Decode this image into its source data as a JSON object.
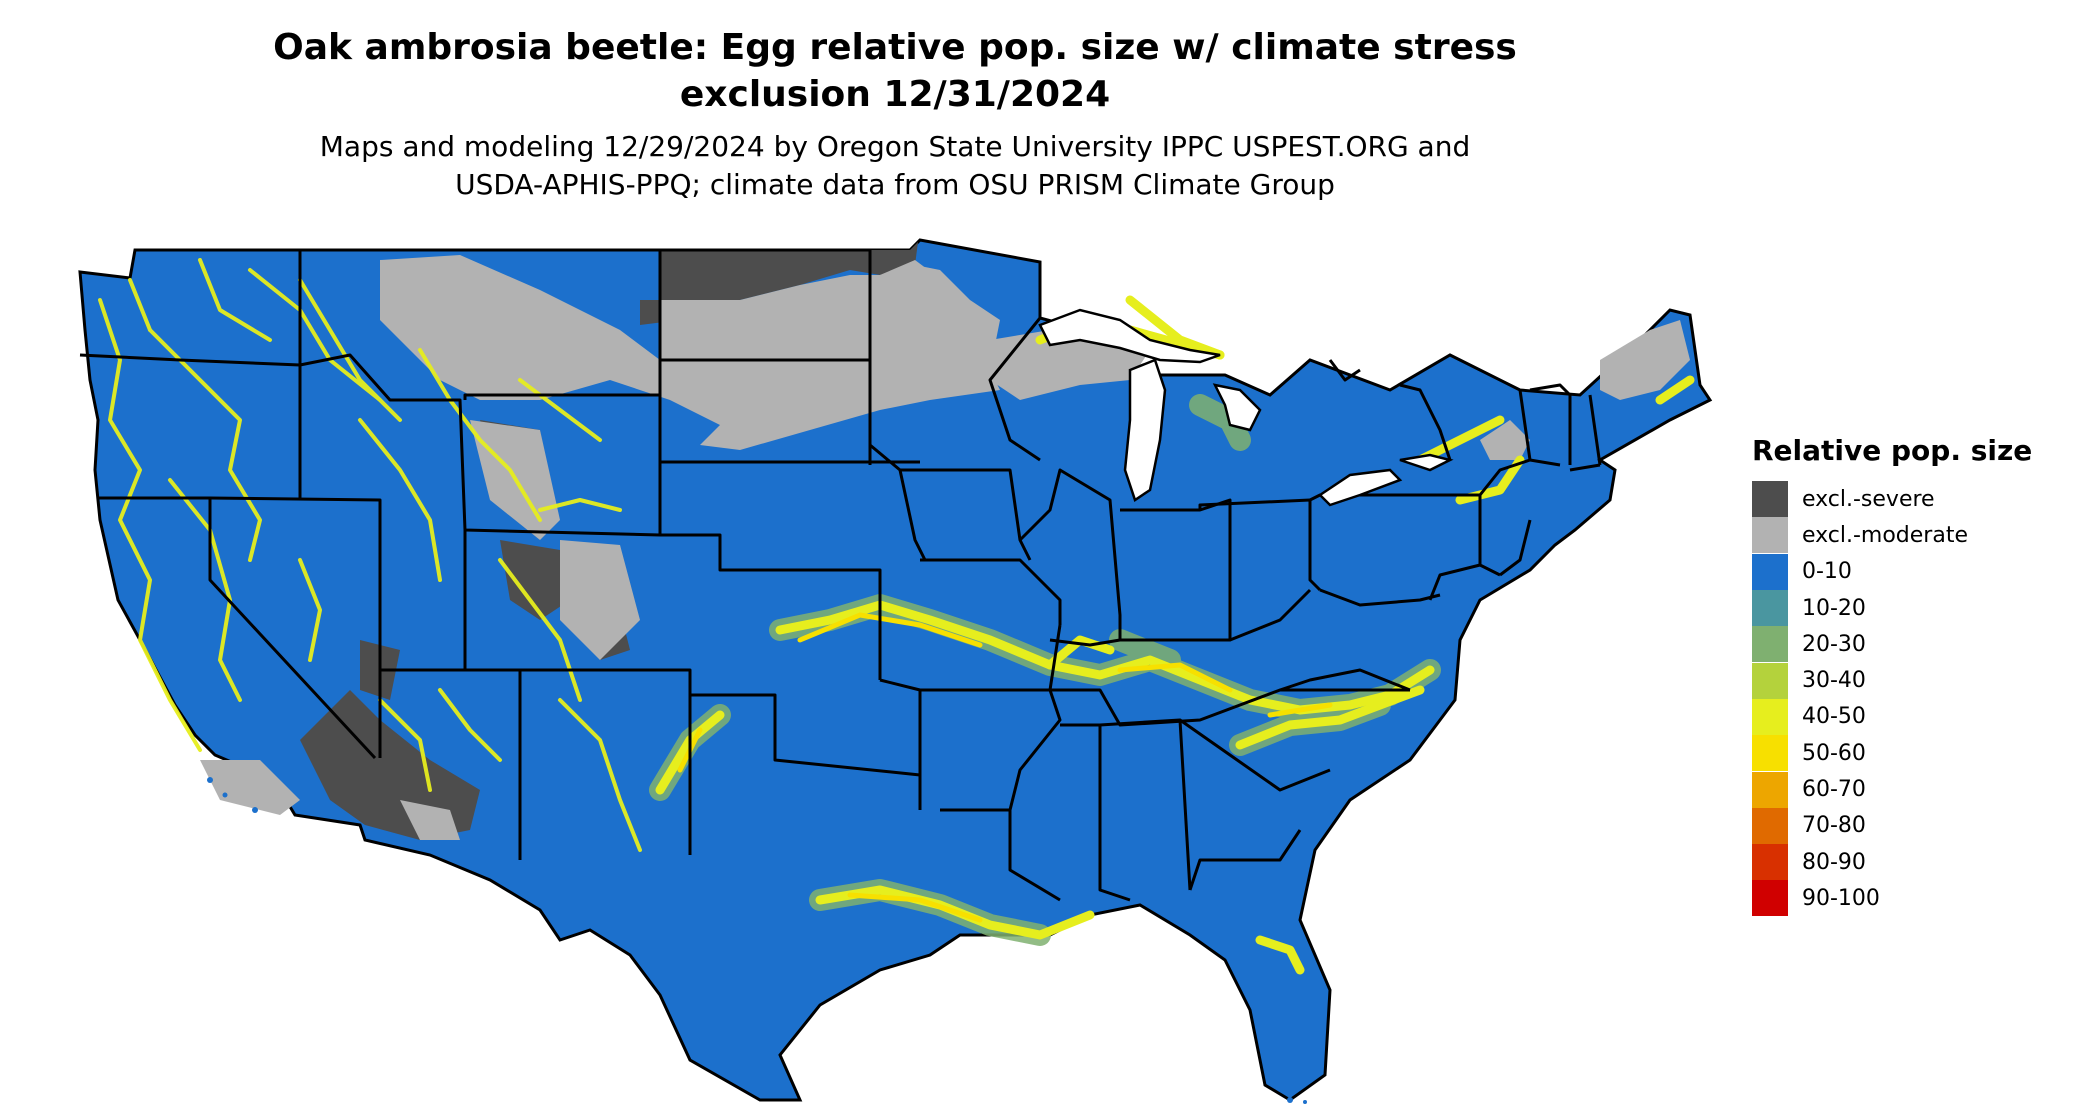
{
  "title": {
    "line1": "Oak ambrosia beetle: Egg relative pop. size w/ climate stress",
    "line2": "exclusion 12/31/2024"
  },
  "subtitle": {
    "line1": "Maps and modeling 12/29/2024 by Oregon State University IPPC USPEST.ORG and",
    "line2": "USDA-APHIS-PPQ; climate data from OSU PRISM Climate Group"
  },
  "legend": {
    "title": "Relative pop. size",
    "items": [
      {
        "label": "excl.-severe",
        "color": "#4d4d4d"
      },
      {
        "label": "excl.-moderate",
        "color": "#b2b2b2"
      },
      {
        "label": "0-10",
        "color": "#1c70cc"
      },
      {
        "label": "10-20",
        "color": "#4a96a0"
      },
      {
        "label": "20-30",
        "color": "#7fb070"
      },
      {
        "label": "30-40",
        "color": "#b4d23c"
      },
      {
        "label": "40-50",
        "color": "#e6ee1e"
      },
      {
        "label": "50-60",
        "color": "#f7e000"
      },
      {
        "label": "60-70",
        "color": "#eda600"
      },
      {
        "label": "70-80",
        "color": "#e06a00"
      },
      {
        "label": "80-90",
        "color": "#d83000"
      },
      {
        "label": "90-100",
        "color": "#d00000"
      }
    ]
  }
}
